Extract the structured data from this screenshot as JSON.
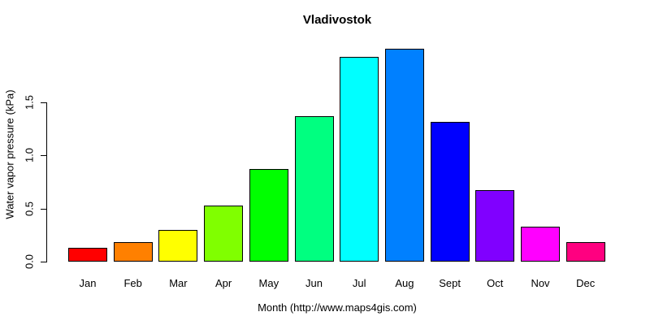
{
  "chart_data": {
    "type": "bar",
    "title": "Vladivostok",
    "xlabel": "Month (http://www.maps4gis.com)",
    "ylabel": "Water vapor pressure (kPa)",
    "categories": [
      "Jan",
      "Feb",
      "Mar",
      "Apr",
      "May",
      "Jun",
      "Jul",
      "Aug",
      "Sept",
      "Oct",
      "Nov",
      "Dec"
    ],
    "values": [
      0.13,
      0.18,
      0.3,
      0.53,
      0.87,
      1.37,
      1.92,
      2.0,
      1.31,
      0.67,
      0.33,
      0.18
    ],
    "bar_colors": [
      "#FF0000",
      "#FF8000",
      "#FFFF00",
      "#80FF00",
      "#00FF00",
      "#00FF80",
      "#00FFFF",
      "#0080FF",
      "#0000FF",
      "#8000FF",
      "#FF00FF",
      "#FF0080"
    ],
    "bar_border_color": "#000000",
    "yticks": [
      0.0,
      0.5,
      1.0,
      1.5
    ],
    "ytick_labels": [
      "0.0",
      "0.5",
      "1.0",
      "1.5"
    ],
    "ylim": [
      0,
      2.05
    ],
    "grid": false,
    "legend": null
  }
}
